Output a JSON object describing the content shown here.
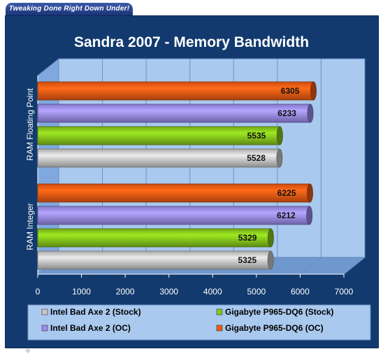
{
  "header": {
    "tagline": "Tweaking Done Right Down Under!"
  },
  "colors": {
    "frame": "#123a6e",
    "plot_back": "#a9c9ee",
    "plot_side": "#7fa9de",
    "plot_floor": "#6f98cf",
    "legend_back": "#a9c9ee"
  },
  "chart_data": {
    "type": "bar",
    "orientation": "horizontal",
    "title": "Sandra 2007 - Memory Bandwidth",
    "xlim": [
      0,
      7000
    ],
    "x_ticks": [
      0,
      1000,
      2000,
      3000,
      4000,
      5000,
      6000,
      7000
    ],
    "categories": [
      "RAM Floating Point",
      "RAM Integer"
    ],
    "series": [
      {
        "name": "Gigabyte P965-DQ6 (OC)",
        "color": "#f25a14",
        "values": [
          6305,
          6225
        ]
      },
      {
        "name": "Intel Bad Axe 2 (OC)",
        "color": "#9a8cef",
        "values": [
          6233,
          6212
        ]
      },
      {
        "name": "Gigabyte P965-DQ6 (Stock)",
        "color": "#86c61c",
        "values": [
          5535,
          5329
        ]
      },
      {
        "name": "Intel Bad Axe 2 (Stock)",
        "color": "#c8c8c8",
        "values": [
          5528,
          5325
        ]
      }
    ],
    "legend": {
      "placement": "bottom",
      "order": [
        "Intel Bad Axe 2 (Stock)",
        "Gigabyte P965-DQ6 (Stock)",
        "Intel Bad Axe 2 (OC)",
        "Gigabyte P965-DQ6 (OC)"
      ]
    },
    "grid": true
  }
}
